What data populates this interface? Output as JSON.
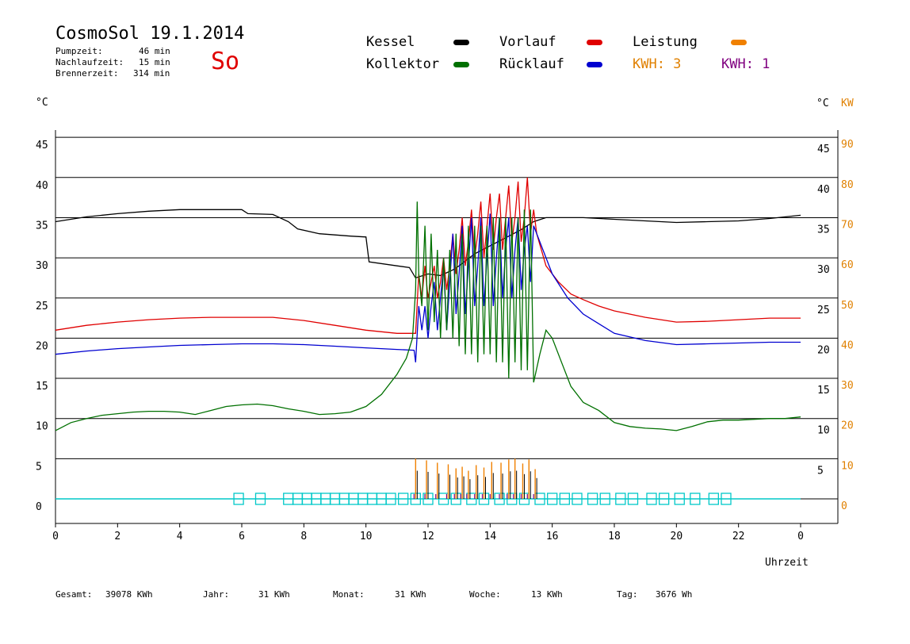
{
  "header": {
    "title": "CosmoSol 19.1.2014",
    "day": "So",
    "pump_label": "Pumpzeit:",
    "pump_value": "46 min",
    "nachlauf_label": "Nachlaufzeit:",
    "nachlauf_value": "15 min",
    "brenner_label": "Brennerzeit:",
    "brenner_value": "314 min"
  },
  "legend": {
    "kessel": "Kessel",
    "vorlauf": "Vorlauf",
    "leistung": "Leistung",
    "kollektor": "Kollektor",
    "ruecklauf": "Rücklauf",
    "kwh_orange": "KWH: 3",
    "kwh_purple": "KWH: 1"
  },
  "colors": {
    "kessel": "#000000",
    "vorlauf": "#e00000",
    "leistung": "#f08000",
    "kollektor": "#007000",
    "ruecklauf": "#0000d0",
    "kwh_orange": "#e08000",
    "kwh_purple": "#800080",
    "cyan": "#00c8c8"
  },
  "axes": {
    "left_unit": "°C",
    "right_unit_c": "°C",
    "right_unit_kw": "KW",
    "xlabel": "Uhrzeit"
  },
  "footer": {
    "gesamt_label": "Gesamt:",
    "gesamt_value": "39078 KWh",
    "jahr_label": "Jahr:",
    "jahr_value": "31 KWh",
    "monat_label": "Monat:",
    "monat_value": "31 KWh",
    "woche_label": "Woche:",
    "woche_value": "13 KWh",
    "tag_label": "Tag:",
    "tag_value": "3676 Wh"
  },
  "chart_data": {
    "type": "line",
    "xlim": [
      0,
      24
    ],
    "ylim": [
      -3,
      46
    ],
    "ylim_kw": [
      -6,
      92
    ],
    "x_ticks": [
      "0",
      "2",
      "4",
      "6",
      "8",
      "10",
      "12",
      "14",
      "16",
      "18",
      "20",
      "22",
      "0"
    ],
    "y_ticks_left": [
      "0",
      "5",
      "10",
      "15",
      "20",
      "25",
      "30",
      "35",
      "40",
      "45"
    ],
    "y_ticks_right_c": [
      "5",
      "10",
      "15",
      "20",
      "25",
      "30",
      "35",
      "40",
      "45"
    ],
    "y_ticks_right_kw": [
      "0",
      "10",
      "20",
      "30",
      "40",
      "50",
      "60",
      "70",
      "80",
      "90"
    ],
    "grid": true,
    "series": [
      {
        "name": "Kessel",
        "color": "#000000",
        "points": [
          [
            0,
            34.5
          ],
          [
            1,
            35.1
          ],
          [
            2,
            35.5
          ],
          [
            3,
            35.8
          ],
          [
            4,
            36.0
          ],
          [
            5,
            36.0
          ],
          [
            6,
            36.0
          ],
          [
            6.2,
            35.5
          ],
          [
            7,
            35.4
          ],
          [
            7.5,
            34.5
          ],
          [
            7.8,
            33.6
          ],
          [
            8.5,
            33.0
          ],
          [
            9.5,
            32.7
          ],
          [
            10,
            32.6
          ],
          [
            10.1,
            29.5
          ],
          [
            11,
            29.0
          ],
          [
            11.4,
            28.8
          ],
          [
            11.6,
            27.5
          ],
          [
            12,
            28.0
          ],
          [
            12.4,
            27.8
          ],
          [
            12.8,
            28.5
          ],
          [
            13,
            29.0
          ],
          [
            13.5,
            30.5
          ],
          [
            14,
            31.5
          ],
          [
            14.5,
            32.5
          ],
          [
            15,
            33.5
          ],
          [
            15.4,
            34.5
          ],
          [
            15.8,
            35.0
          ],
          [
            17,
            35.0
          ],
          [
            18,
            34.8
          ],
          [
            19,
            34.6
          ],
          [
            20,
            34.4
          ],
          [
            21,
            34.5
          ],
          [
            22,
            34.6
          ],
          [
            23,
            34.9
          ],
          [
            24,
            35.3
          ]
        ]
      },
      {
        "name": "Vorlauf",
        "color": "#e00000",
        "points": [
          [
            0,
            21.0
          ],
          [
            1,
            21.6
          ],
          [
            2,
            22.0
          ],
          [
            3,
            22.3
          ],
          [
            4,
            22.5
          ],
          [
            5,
            22.6
          ],
          [
            6,
            22.6
          ],
          [
            7,
            22.6
          ],
          [
            8,
            22.2
          ],
          [
            9,
            21.6
          ],
          [
            10,
            21.0
          ],
          [
            11,
            20.6
          ],
          [
            11.6,
            20.6
          ],
          [
            11.7,
            28
          ],
          [
            11.8,
            25
          ],
          [
            11.9,
            29
          ],
          [
            12.0,
            25
          ],
          [
            12.1,
            27
          ],
          [
            12.2,
            29
          ],
          [
            12.3,
            25
          ],
          [
            12.4,
            27
          ],
          [
            12.5,
            30
          ],
          [
            12.6,
            26
          ],
          [
            12.7,
            29
          ],
          [
            12.8,
            33
          ],
          [
            12.9,
            28
          ],
          [
            13.0,
            31
          ],
          [
            13.1,
            35
          ],
          [
            13.2,
            29
          ],
          [
            13.3,
            32
          ],
          [
            13.4,
            36
          ],
          [
            13.5,
            30
          ],
          [
            13.6,
            33
          ],
          [
            13.7,
            37
          ],
          [
            13.8,
            30
          ],
          [
            13.9,
            34
          ],
          [
            14.0,
            38
          ],
          [
            14.1,
            31
          ],
          [
            14.2,
            35
          ],
          [
            14.3,
            38
          ],
          [
            14.4,
            31
          ],
          [
            14.5,
            35
          ],
          [
            14.6,
            39
          ],
          [
            14.7,
            32
          ],
          [
            14.8,
            35
          ],
          [
            14.9,
            39.5
          ],
          [
            15.0,
            32
          ],
          [
            15.1,
            35
          ],
          [
            15.2,
            40
          ],
          [
            15.3,
            33
          ],
          [
            15.4,
            36
          ],
          [
            15.5,
            33
          ],
          [
            15.8,
            29
          ],
          [
            16.2,
            27
          ],
          [
            16.6,
            25.5
          ],
          [
            17,
            24.8
          ],
          [
            17.5,
            24
          ],
          [
            18,
            23.4
          ],
          [
            19,
            22.6
          ],
          [
            20,
            22.0
          ],
          [
            21,
            22.1
          ],
          [
            22,
            22.3
          ],
          [
            23,
            22.5
          ],
          [
            24,
            22.5
          ]
        ]
      },
      {
        "name": "Rücklauf",
        "color": "#0000d0",
        "points": [
          [
            0,
            18.0
          ],
          [
            1,
            18.4
          ],
          [
            2,
            18.7
          ],
          [
            3,
            18.9
          ],
          [
            4,
            19.1
          ],
          [
            5,
            19.2
          ],
          [
            6,
            19.3
          ],
          [
            7,
            19.3
          ],
          [
            8,
            19.2
          ],
          [
            9,
            19.0
          ],
          [
            10,
            18.8
          ],
          [
            11,
            18.6
          ],
          [
            11.55,
            18.5
          ],
          [
            11.6,
            17
          ],
          [
            11.7,
            24
          ],
          [
            11.8,
            21
          ],
          [
            11.9,
            24
          ],
          [
            12.0,
            20
          ],
          [
            12.1,
            24
          ],
          [
            12.2,
            27
          ],
          [
            12.3,
            21
          ],
          [
            12.4,
            25
          ],
          [
            12.5,
            29
          ],
          [
            12.6,
            21
          ],
          [
            12.7,
            27
          ],
          [
            12.8,
            33
          ],
          [
            12.9,
            23
          ],
          [
            13.0,
            28
          ],
          [
            13.1,
            34
          ],
          [
            13.2,
            23
          ],
          [
            13.3,
            29
          ],
          [
            13.4,
            35
          ],
          [
            13.5,
            24
          ],
          [
            13.6,
            29
          ],
          [
            13.7,
            35
          ],
          [
            13.8,
            24
          ],
          [
            13.9,
            30
          ],
          [
            14.0,
            35.5
          ],
          [
            14.1,
            24
          ],
          [
            14.2,
            30
          ],
          [
            14.3,
            35
          ],
          [
            14.4,
            25
          ],
          [
            14.5,
            31
          ],
          [
            14.6,
            35
          ],
          [
            14.7,
            25
          ],
          [
            14.8,
            31
          ],
          [
            14.9,
            35
          ],
          [
            15.0,
            26
          ],
          [
            15.1,
            31
          ],
          [
            15.2,
            34
          ],
          [
            15.3,
            27
          ],
          [
            15.4,
            34
          ],
          [
            15.6,
            32
          ],
          [
            16,
            28
          ],
          [
            16.5,
            25
          ],
          [
            17,
            23
          ],
          [
            17.5,
            21.8
          ],
          [
            18,
            20.6
          ],
          [
            19,
            19.7
          ],
          [
            20,
            19.2
          ],
          [
            21,
            19.3
          ],
          [
            22,
            19.4
          ],
          [
            23,
            19.5
          ],
          [
            24,
            19.5
          ]
        ]
      },
      {
        "name": "Kollektor",
        "color": "#007000",
        "points": [
          [
            0,
            8.5
          ],
          [
            0.5,
            9.5
          ],
          [
            1,
            10.0
          ],
          [
            1.5,
            10.4
          ],
          [
            2,
            10.6
          ],
          [
            2.5,
            10.8
          ],
          [
            3,
            10.9
          ],
          [
            3.5,
            10.9
          ],
          [
            4,
            10.8
          ],
          [
            4.5,
            10.5
          ],
          [
            5,
            11.0
          ],
          [
            5.5,
            11.5
          ],
          [
            6,
            11.7
          ],
          [
            6.5,
            11.8
          ],
          [
            7,
            11.6
          ],
          [
            7.5,
            11.2
          ],
          [
            8,
            10.9
          ],
          [
            8.5,
            10.5
          ],
          [
            9,
            10.6
          ],
          [
            9.5,
            10.8
          ],
          [
            10,
            11.5
          ],
          [
            10.5,
            13
          ],
          [
            11,
            15.5
          ],
          [
            11.3,
            17.5
          ],
          [
            11.5,
            20
          ],
          [
            11.6,
            26
          ],
          [
            11.65,
            37
          ],
          [
            11.7,
            28
          ],
          [
            11.8,
            24
          ],
          [
            11.9,
            34
          ],
          [
            12.0,
            21
          ],
          [
            12.1,
            33
          ],
          [
            12.2,
            22
          ],
          [
            12.3,
            31
          ],
          [
            12.4,
            20
          ],
          [
            12.5,
            30
          ],
          [
            12.6,
            21
          ],
          [
            12.7,
            31
          ],
          [
            12.8,
            20
          ],
          [
            12.9,
            33
          ],
          [
            13.0,
            19
          ],
          [
            13.1,
            33
          ],
          [
            13.2,
            18
          ],
          [
            13.3,
            34
          ],
          [
            13.4,
            18
          ],
          [
            13.5,
            34
          ],
          [
            13.6,
            17
          ],
          [
            13.7,
            34
          ],
          [
            13.8,
            18
          ],
          [
            13.9,
            34
          ],
          [
            14.0,
            18
          ],
          [
            14.1,
            35
          ],
          [
            14.2,
            17
          ],
          [
            14.3,
            35
          ],
          [
            14.4,
            17
          ],
          [
            14.5,
            35
          ],
          [
            14.6,
            15
          ],
          [
            14.7,
            35
          ],
          [
            14.8,
            17
          ],
          [
            14.9,
            35
          ],
          [
            15.0,
            16
          ],
          [
            15.1,
            36
          ],
          [
            15.2,
            16
          ],
          [
            15.3,
            36
          ],
          [
            15.4,
            14.5
          ],
          [
            15.6,
            18
          ],
          [
            15.8,
            21
          ],
          [
            16,
            20
          ],
          [
            16.3,
            17
          ],
          [
            16.6,
            14
          ],
          [
            17,
            12
          ],
          [
            17.5,
            11
          ],
          [
            18,
            9.5
          ],
          [
            18.5,
            9
          ],
          [
            19,
            8.8
          ],
          [
            19.5,
            8.7
          ],
          [
            20,
            8.5
          ],
          [
            20.5,
            9
          ],
          [
            21,
            9.6
          ],
          [
            21.5,
            9.8
          ],
          [
            22,
            9.8
          ],
          [
            22.5,
            9.9
          ],
          [
            23,
            10
          ],
          [
            23.5,
            10
          ],
          [
            24,
            10.2
          ]
        ]
      }
    ]
  }
}
